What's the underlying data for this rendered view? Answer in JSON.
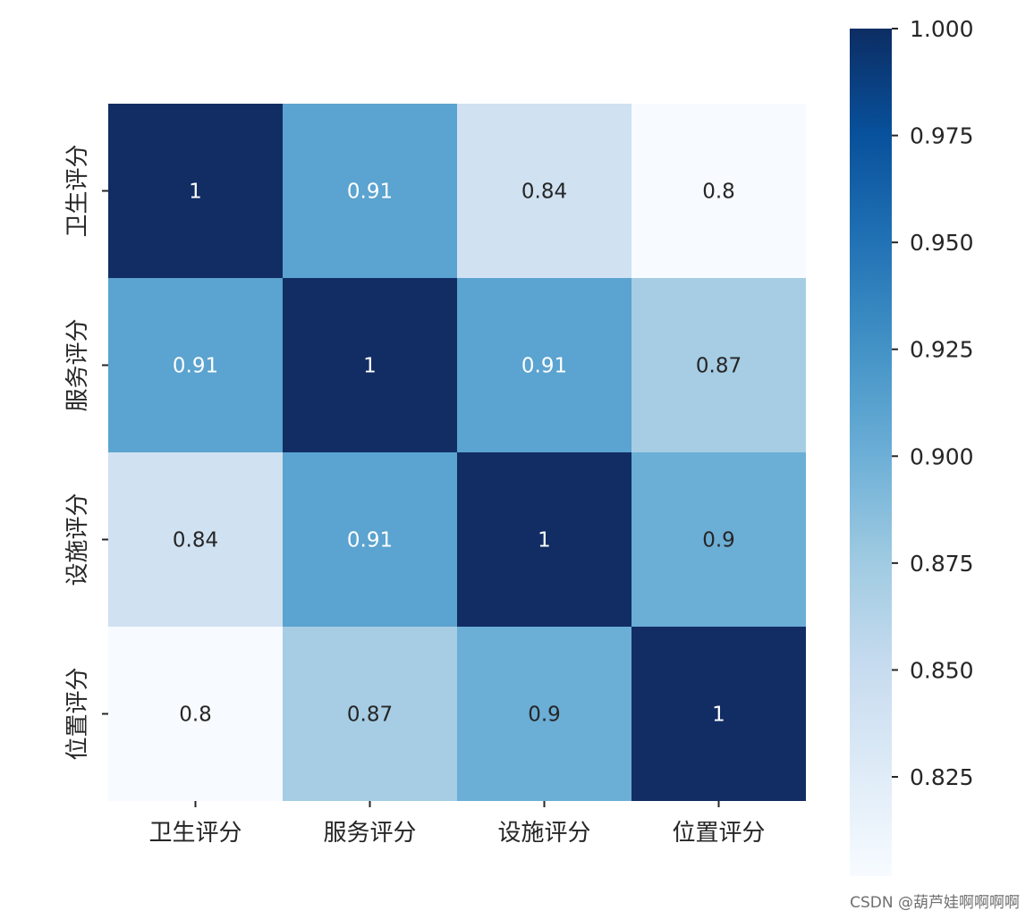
{
  "chart_data": {
    "type": "heatmap",
    "title": "",
    "xlabel": "",
    "ylabel": "",
    "x_labels": [
      "卫生评分",
      "服务评分",
      "设施评分",
      "位置评分"
    ],
    "y_labels": [
      "卫生评分",
      "服务评分",
      "设施评分",
      "位置评分"
    ],
    "values": [
      [
        1.0,
        0.91,
        0.84,
        0.8
      ],
      [
        0.91,
        1.0,
        0.91,
        0.87
      ],
      [
        0.84,
        0.91,
        1.0,
        0.9
      ],
      [
        0.8,
        0.87,
        0.9,
        1.0
      ]
    ],
    "annotations": [
      [
        "1",
        "0.91",
        "0.84",
        "0.8"
      ],
      [
        "0.91",
        "1",
        "0.91",
        "0.87"
      ],
      [
        "0.84",
        "0.91",
        "1",
        "0.9"
      ],
      [
        "0.8",
        "0.87",
        "0.9",
        "1"
      ]
    ],
    "colormap": "Blues",
    "colorbar": {
      "vmin": 0.8,
      "vmax": 1.0,
      "ticks": [
        1.0,
        0.975,
        0.95,
        0.925,
        0.9,
        0.875,
        0.85,
        0.825
      ],
      "tick_labels": [
        "1.000",
        "0.975",
        "0.950",
        "0.925",
        "0.900",
        "0.875",
        "0.850",
        "0.825"
      ],
      "placement": "right"
    },
    "grid": false
  },
  "watermark": "CSDN @葫芦娃啊啊啊啊"
}
